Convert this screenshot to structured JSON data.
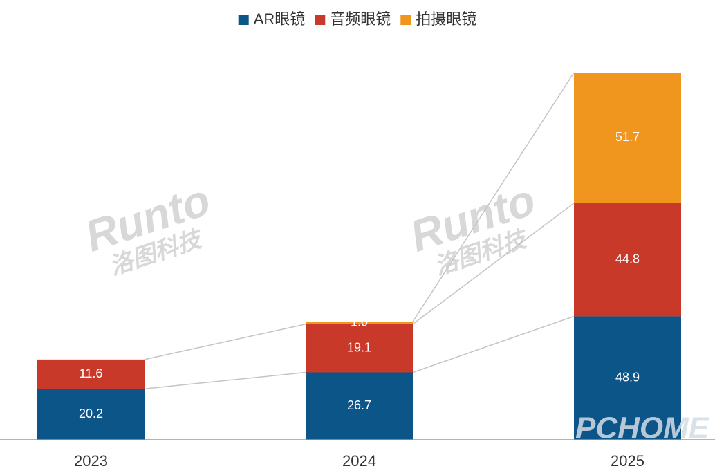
{
  "chart_data": {
    "type": "stacked-bar",
    "categories": [
      "2023",
      "2024",
      "2025"
    ],
    "series": [
      {
        "name": "AR眼镜",
        "color": "#0b5588",
        "values": [
          20.2,
          26.7,
          48.9
        ]
      },
      {
        "name": "音频眼镜",
        "color": "#c9392a",
        "values": [
          11.6,
          19.1,
          44.8
        ]
      },
      {
        "name": "拍摄眼镜",
        "color": "#f0951e",
        "values": [
          null,
          1.0,
          51.7
        ],
        "value_labels": [
          null,
          "1.0",
          "51.7"
        ]
      }
    ],
    "legend": "top",
    "connectors": true
  },
  "watermarks": {
    "brand": "Runto",
    "brand_cn": "洛图科技",
    "site": "PCHOME"
  }
}
